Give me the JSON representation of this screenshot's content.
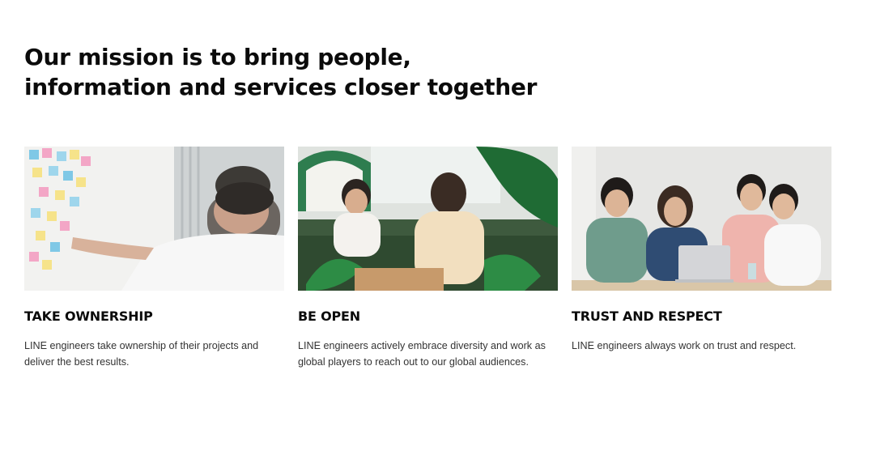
{
  "mission": {
    "line1": "Our mission is to bring people,",
    "line2": "information and services closer together"
  },
  "values": [
    {
      "title": "TAKE OWNERSHIP",
      "description": "LINE engineers take ownership of their projects and deliver the best results.",
      "photo_icon": "photo-sticky-notes-wall"
    },
    {
      "title": "BE OPEN",
      "description": "LINE engineers actively embrace diversity and work as global players to reach out to our global audiences.",
      "photo_icon": "photo-lounge-meeting"
    },
    {
      "title": "TRUST AND RESPECT",
      "description": "LINE engineers always work on trust and respect.",
      "photo_icon": "photo-team-table"
    }
  ],
  "colors": {
    "text": "#0b0b0b",
    "body_text": "#333333",
    "background": "#ffffff",
    "plant_green": "#1f7a3a"
  }
}
